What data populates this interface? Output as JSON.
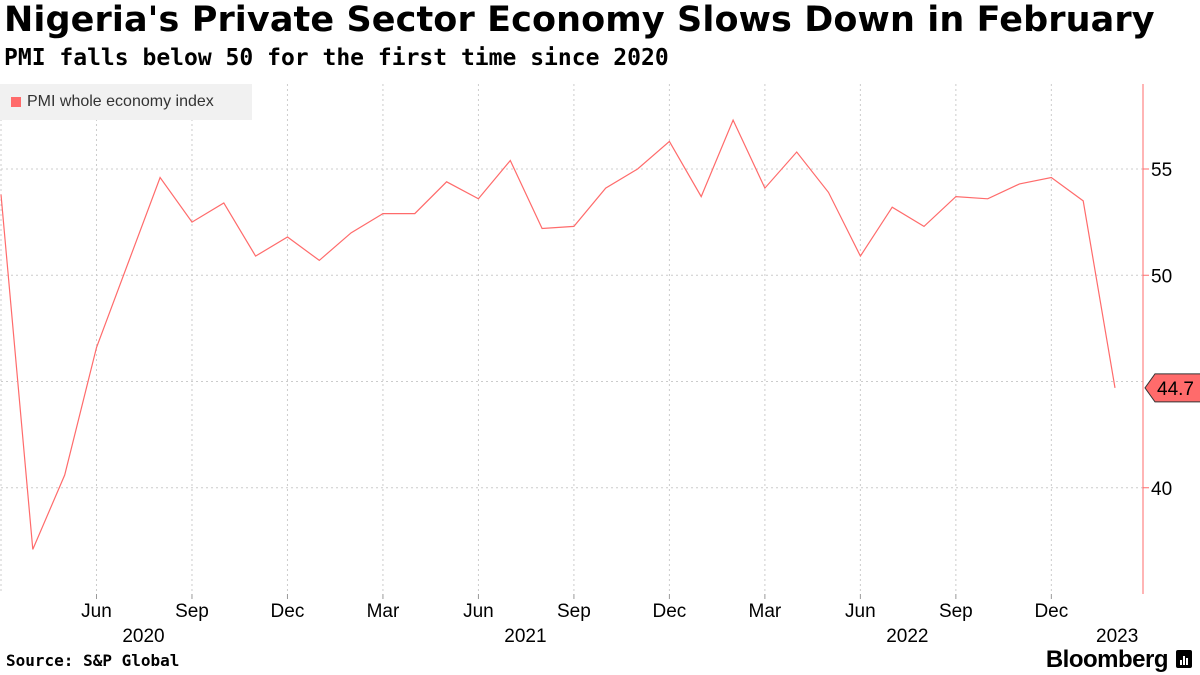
{
  "header": {
    "title": "Nigeria's Private Sector Economy Slows Down in February",
    "subtitle": "PMI falls below 50 for the first time since 2020"
  },
  "footer": {
    "source": "Source: S&P Global",
    "brand": "Bloomberg"
  },
  "colors": {
    "line": "#ff6b6b",
    "axis": "#ff6b6b",
    "grid": "#cccccc",
    "label_bg": "#ff6b6b"
  },
  "chart_data": {
    "type": "line",
    "title": "Nigeria's Private Sector Economy Slows Down in February",
    "subtitle": "PMI falls below 50 for the first time since 2020",
    "legend": "top-left",
    "y_axis_position": "right",
    "ylim": [
      35,
      59
    ],
    "yticks": [
      40,
      50,
      55
    ],
    "ytick_labels": [
      "40",
      "50",
      "55"
    ],
    "gridlines_y": [
      40,
      45,
      50,
      55
    ],
    "x_range": [
      "2020-03",
      "2023-02"
    ],
    "x_ticks": [
      {
        "month": "2020-06",
        "label": "Jun",
        "year": "2020"
      },
      {
        "month": "2020-09",
        "label": "Sep",
        "year": ""
      },
      {
        "month": "2020-12",
        "label": "Dec",
        "year": ""
      },
      {
        "month": "2021-03",
        "label": "Mar",
        "year": ""
      },
      {
        "month": "2021-06",
        "label": "Jun",
        "year": "2021"
      },
      {
        "month": "2021-09",
        "label": "Sep",
        "year": ""
      },
      {
        "month": "2021-12",
        "label": "Dec",
        "year": ""
      },
      {
        "month": "2022-03",
        "label": "Mar",
        "year": ""
      },
      {
        "month": "2022-06",
        "label": "Jun",
        "year": "2022"
      },
      {
        "month": "2022-09",
        "label": "Sep",
        "year": ""
      },
      {
        "month": "2022-12",
        "label": "Dec",
        "year": ""
      },
      {
        "month": "2023-01",
        "label": "",
        "year": "2023"
      }
    ],
    "series": [
      {
        "name": "PMI whole economy index",
        "x": [
          "2020-03",
          "2020-04",
          "2020-05",
          "2020-06",
          "2020-07",
          "2020-08",
          "2020-09",
          "2020-10",
          "2020-11",
          "2020-12",
          "2021-01",
          "2021-02",
          "2021-03",
          "2021-04",
          "2021-05",
          "2021-06",
          "2021-07",
          "2021-08",
          "2021-09",
          "2021-10",
          "2021-11",
          "2021-12",
          "2022-01",
          "2022-02",
          "2022-03",
          "2022-04",
          "2022-05",
          "2022-06",
          "2022-07",
          "2022-08",
          "2022-09",
          "2022-10",
          "2022-11",
          "2022-12",
          "2023-01",
          "2023-02"
        ],
        "values": [
          53.8,
          37.1,
          40.6,
          46.6,
          50.6,
          54.6,
          52.5,
          53.4,
          50.9,
          51.8,
          50.7,
          52.0,
          52.9,
          52.9,
          54.4,
          53.6,
          55.4,
          52.2,
          52.3,
          54.1,
          55.0,
          56.3,
          53.7,
          57.3,
          54.1,
          55.8,
          53.9,
          50.9,
          53.2,
          52.3,
          53.7,
          53.6,
          54.3,
          54.6,
          53.5,
          44.7
        ]
      }
    ],
    "last_value_label": "44.7"
  }
}
